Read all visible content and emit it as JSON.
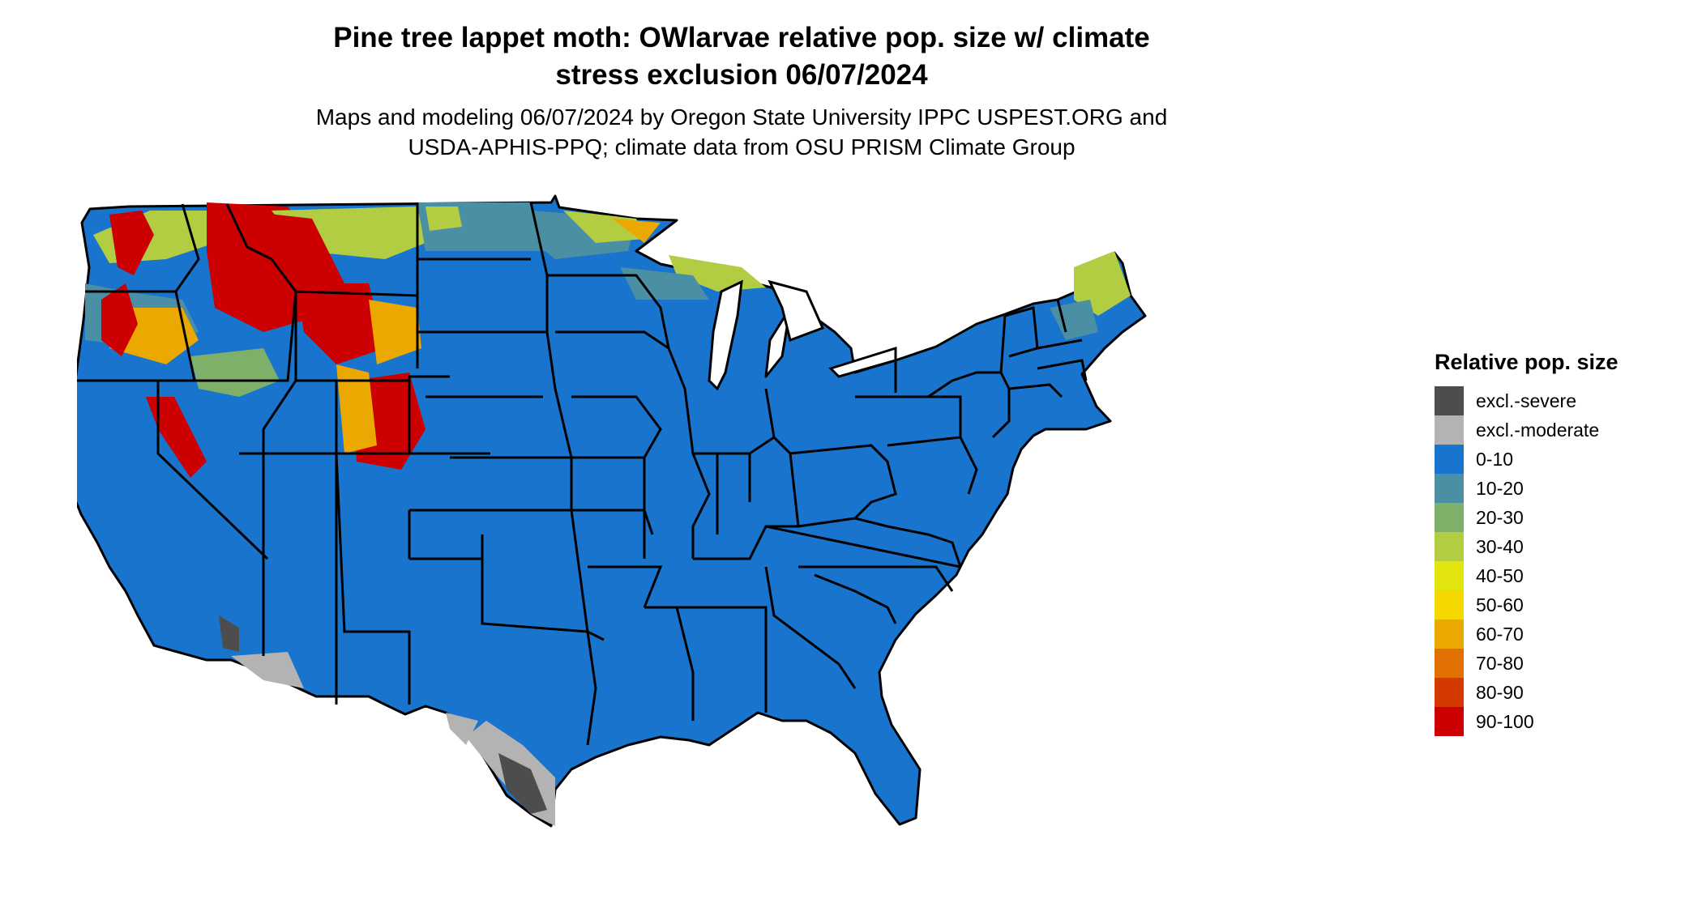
{
  "title_line1": "Pine tree lappet moth: OWlarvae relative pop. size w/ climate",
  "title_line2": "stress exclusion 06/07/2024",
  "subtitle_line1": "Maps and modeling 06/07/2024 by Oregon State University IPPC USPEST.ORG and",
  "subtitle_line2": "USDA-APHIS-PPQ; climate data from OSU PRISM Climate Group",
  "legend": {
    "title": "Relative pop. size",
    "items": [
      {
        "label": "excl.-severe",
        "color": "#4d4d4d"
      },
      {
        "label": "excl.-moderate",
        "color": "#b3b3b3"
      },
      {
        "label": "0-10",
        "color": "#1874cd"
      },
      {
        "label": "10-20",
        "color": "#4a8fa3"
      },
      {
        "label": "20-30",
        "color": "#7fb069"
      },
      {
        "label": "30-40",
        "color": "#b3cd42"
      },
      {
        "label": "40-50",
        "color": "#e2e60e"
      },
      {
        "label": "50-60",
        "color": "#f5d800"
      },
      {
        "label": "60-70",
        "color": "#eaa800"
      },
      {
        "label": "70-80",
        "color": "#e07000"
      },
      {
        "label": "80-90",
        "color": "#d43a00"
      },
      {
        "label": "90-100",
        "color": "#cc0000"
      }
    ]
  }
}
